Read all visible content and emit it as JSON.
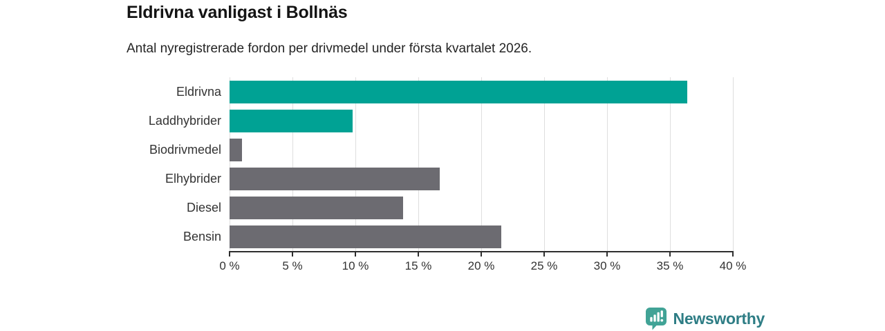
{
  "title": "Eldrivna vanligast i Bollnäs",
  "subtitle": "Antal nyregistrerade fordon per drivmedel under första kvartalet 2026.",
  "chart_data": {
    "type": "bar",
    "orientation": "horizontal",
    "title": "Eldrivna vanligast i Bollnäs",
    "subtitle": "Antal nyregistrerade fordon per drivmedel under första kvartalet 2026.",
    "categories": [
      "Eldrivna",
      "Laddhybrider",
      "Biodrivmedel",
      "Elhybrider",
      "Diesel",
      "Bensin"
    ],
    "values": [
      36.4,
      9.8,
      1.0,
      16.7,
      13.8,
      21.6
    ],
    "bar_colors": [
      "#00a294",
      "#00a294",
      "#6c6b71",
      "#6c6b71",
      "#6c6b71",
      "#6c6b71"
    ],
    "highlight_color": "#00a294",
    "default_color": "#6c6b71",
    "unit": "%",
    "xlabel": "",
    "ylabel": "",
    "xlim": [
      0,
      40
    ],
    "x_ticks": [
      0,
      5,
      10,
      15,
      20,
      25,
      30,
      35,
      40
    ],
    "x_tick_suffix": " %",
    "grid": true,
    "gridline_color": "#dedede",
    "axis_color": "#2d2d2d",
    "legend": false
  },
  "branding": {
    "logo_text": "Newsworthy",
    "logo_icon": "bar-chart-speech-bubble",
    "icon_color": "#41a396",
    "text_color": "#2e7d85"
  }
}
